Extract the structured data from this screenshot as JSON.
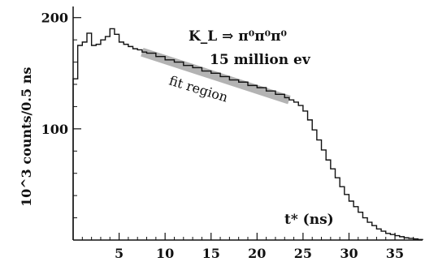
{
  "chart_data": {
    "type": "line",
    "style": "histogram-step",
    "xlabel": "t* (ns)",
    "ylabel": "10^3 counts/0.5 ns",
    "xlim": [
      0,
      38
    ],
    "ylim": [
      0,
      210
    ],
    "x_ticks": [
      5,
      10,
      15,
      20,
      25,
      30,
      35
    ],
    "y_ticks": [
      100,
      200
    ],
    "annotations": {
      "decay": "K_L ⇒ π⁰π⁰π⁰",
      "events": "15 million ev",
      "fit_label": "fit region"
    },
    "fit_region": {
      "x_start": 7.5,
      "x_end": 23.5
    },
    "series": [
      {
        "x": [
          0,
          0.5,
          1,
          1.5,
          2,
          2.5,
          3,
          3.5,
          4,
          4.5,
          5,
          5.5,
          6,
          6.5,
          7,
          7.5,
          8,
          9,
          10,
          11,
          12,
          13,
          14,
          15,
          16,
          17,
          18,
          19,
          20,
          21,
          22,
          23,
          23.5,
          24,
          24.5,
          25,
          25.5,
          26,
          26.5,
          27,
          27.5,
          28,
          28.5,
          29,
          29.5,
          30,
          30.5,
          31,
          31.5,
          32,
          32.5,
          33,
          33.5,
          34,
          34.5,
          35,
          35.5,
          36,
          36.5,
          37,
          37.5,
          38
        ],
        "y": [
          145,
          175,
          178,
          186,
          175,
          176,
          180,
          183,
          190,
          185,
          178,
          176,
          174,
          172,
          171,
          169,
          168,
          165,
          162,
          160,
          157,
          155,
          152,
          150,
          147,
          144,
          142,
          139,
          137,
          134,
          131,
          128,
          126,
          124,
          121,
          116,
          108,
          99,
          90,
          81,
          72,
          64,
          56,
          48,
          41,
          35,
          30,
          25,
          20,
          16,
          13,
          10,
          8,
          6,
          5,
          4,
          3,
          2,
          1.5,
          1,
          0.5,
          0
        ]
      }
    ]
  }
}
